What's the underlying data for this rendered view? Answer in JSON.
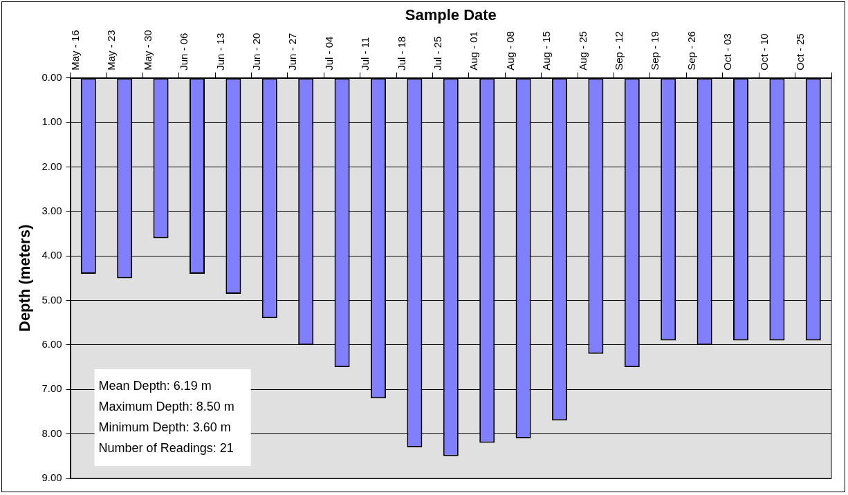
{
  "chart_data": {
    "type": "bar",
    "xlabel": "Sample Date",
    "ylabel": "Depth (meters)",
    "categories": [
      "May - 16",
      "May - 23",
      "May - 30",
      "Jun - 06",
      "Jun - 13",
      "Jun - 20",
      "Jun - 27",
      "Jul - 04",
      "Jul - 11",
      "Jul - 18",
      "Jul - 25",
      "Aug - 01",
      "Aug - 08",
      "Aug - 15",
      "Aug - 25",
      "Sep - 12",
      "Sep - 19",
      "Sep - 26",
      "Oct - 03",
      "Oct - 10",
      "Oct - 25"
    ],
    "values": [
      4.4,
      4.5,
      3.6,
      4.4,
      4.85,
      5.4,
      6.0,
      6.5,
      7.2,
      8.3,
      8.5,
      8.2,
      8.1,
      7.7,
      6.2,
      6.5,
      5.9,
      6.0,
      5.9,
      5.9,
      5.9
    ],
    "color": "#8080ff",
    "ylim": [
      9,
      0
    ],
    "yticks": [
      {
        "value": 0,
        "label": "0.00"
      },
      {
        "value": 1,
        "label": "1.00"
      },
      {
        "value": 2,
        "label": "2.00"
      },
      {
        "value": 3,
        "label": "3.00"
      },
      {
        "value": 4,
        "label": "4.00"
      },
      {
        "value": 5,
        "label": "5.00"
      },
      {
        "value": 6,
        "label": "6.00"
      },
      {
        "value": 7,
        "label": "7.00"
      },
      {
        "value": 8,
        "label": "8.00"
      },
      {
        "value": 9,
        "label": "9.00"
      }
    ],
    "grid": "y",
    "legend": false,
    "annotations": [
      "Mean Depth: 6.19 m",
      "Maximum Depth: 8.50 m",
      "Minimum Depth: 3.60 m",
      "Number of Readings: 21"
    ]
  }
}
